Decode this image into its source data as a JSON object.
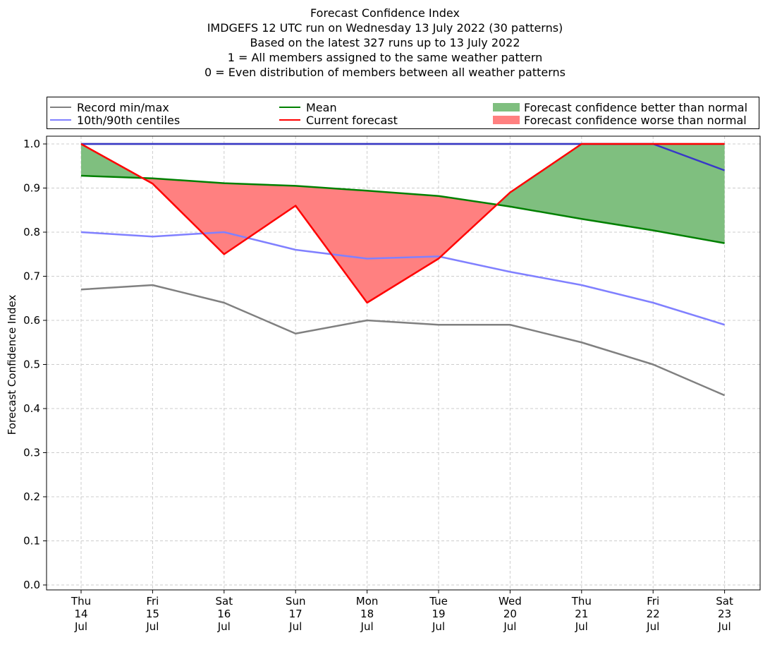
{
  "title_lines": [
    "Forecast Confidence Index",
    "IMDGEFS 12 UTC run on Wednesday 13 July 2022 (30 patterns)",
    "Based on the latest 327 runs up to 13 July 2022",
    "1 = All members assigned to the same weather pattern",
    "0 = Even distribution of members between all weather patterns"
  ],
  "legend": {
    "record": "Record min/max",
    "centiles": "10th/90th centiles",
    "mean": "Mean",
    "current": "Current forecast",
    "better": "Forecast confidence better than normal",
    "worse": "Forecast confidence worse than normal"
  },
  "colors": {
    "record": "#808080",
    "centiles": "#8080ff",
    "centile_overlap": "#3838c8",
    "mean": "#008000",
    "current": "#ff0000",
    "better_fill": "#7fbf7f",
    "worse_fill": "#ff8080",
    "grid": "#cccccc"
  },
  "chart_data": {
    "type": "line",
    "ylabel": "Forecast Confidence Index",
    "ylim": [
      0.0,
      1.0
    ],
    "yticks": [
      "0.0",
      "0.1",
      "0.2",
      "0.3",
      "0.4",
      "0.5",
      "0.6",
      "0.7",
      "0.8",
      "0.9",
      "1.0"
    ],
    "categories": [
      [
        "Thu",
        "14",
        "Jul"
      ],
      [
        "Fri",
        "15",
        "Jul"
      ],
      [
        "Sat",
        "16",
        "Jul"
      ],
      [
        "Sun",
        "17",
        "Jul"
      ],
      [
        "Mon",
        "18",
        "Jul"
      ],
      [
        "Tue",
        "19",
        "Jul"
      ],
      [
        "Wed",
        "20",
        "Jul"
      ],
      [
        "Thu",
        "21",
        "Jul"
      ],
      [
        "Fri",
        "22",
        "Jul"
      ],
      [
        "Sat",
        "23",
        "Jul"
      ]
    ],
    "grid": true,
    "series": [
      {
        "name": "Record min/max",
        "key": "record_min",
        "values": [
          0.67,
          0.68,
          0.64,
          0.57,
          0.6,
          0.59,
          0.59,
          0.55,
          0.5,
          0.43
        ]
      },
      {
        "name": "Record min/max",
        "key": "record_max",
        "values": [
          1.0,
          1.0,
          1.0,
          1.0,
          1.0,
          1.0,
          1.0,
          1.0,
          1.0,
          1.0
        ]
      },
      {
        "name": "10th/90th centiles",
        "key": "p10",
        "values": [
          0.8,
          0.79,
          0.8,
          0.76,
          0.74,
          0.745,
          0.71,
          0.68,
          0.64,
          0.59
        ]
      },
      {
        "name": "10th/90th centiles",
        "key": "p90",
        "values": [
          1.0,
          1.0,
          1.0,
          1.0,
          1.0,
          1.0,
          1.0,
          1.0,
          1.0,
          0.94
        ]
      },
      {
        "name": "Mean",
        "key": "mean",
        "values": [
          0.928,
          0.922,
          0.911,
          0.905,
          0.894,
          0.882,
          0.858,
          0.83,
          0.804,
          0.775
        ]
      },
      {
        "name": "Current forecast",
        "key": "current",
        "values": [
          1.0,
          0.91,
          0.75,
          0.86,
          0.64,
          0.74,
          0.89,
          1.0,
          1.0,
          1.0
        ]
      }
    ]
  }
}
